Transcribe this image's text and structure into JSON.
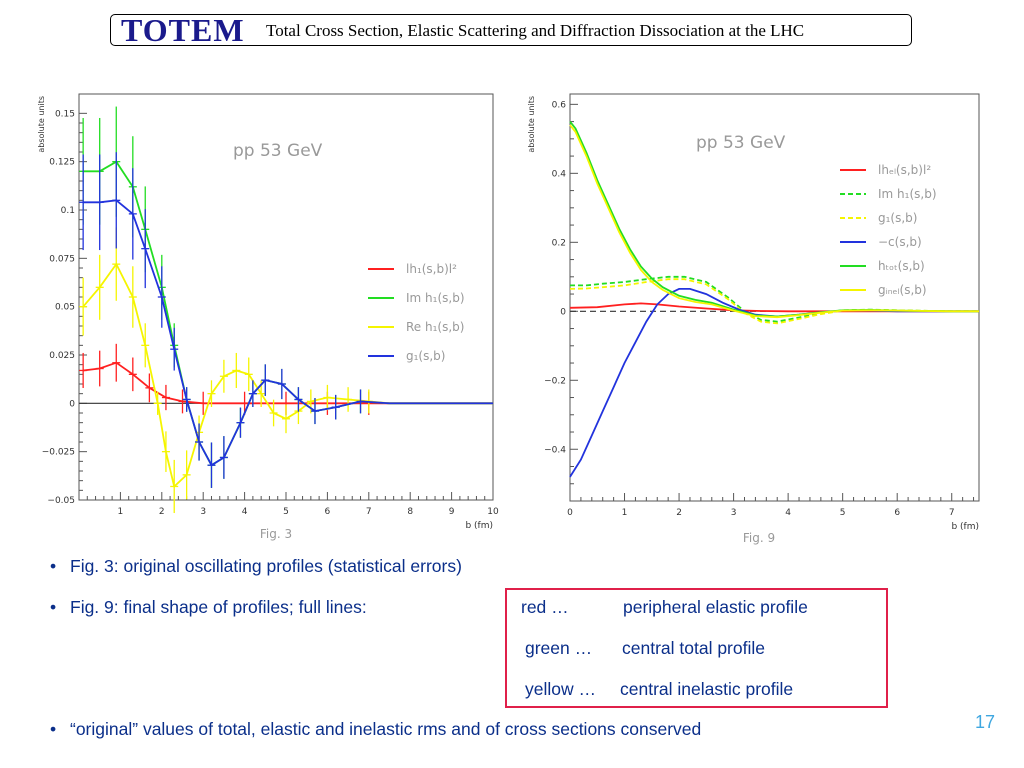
{
  "header": {
    "logo": "TOTEM",
    "title": "Total Cross Section, Elastic Scattering and Diffraction Dissociation at the LHC"
  },
  "colors": {
    "red": "#ff2020",
    "green": "#22dd22",
    "yellow": "#f5f500",
    "blue": "#2233dd",
    "text": "#0b2f8a",
    "box": "#e0204a",
    "pagenum": "#3fa7e0"
  },
  "chart_data": [
    {
      "type": "line",
      "annotation": "pp 53 GeV",
      "figure_label": "Fig. 3",
      "xlabel": "b (fm)",
      "ylabel": "absolute units",
      "xlim": [
        0,
        10
      ],
      "ylim": [
        -0.05,
        0.16
      ],
      "xticks": [
        "1",
        "2",
        "3",
        "4",
        "5",
        "6",
        "7",
        "8",
        "9",
        "10"
      ],
      "yticks": [
        "0.15",
        "0.125",
        "0.1",
        "0.075",
        "0.05",
        "0.025",
        "0",
        "−0.025",
        "−0.05"
      ],
      "legend_position": "right",
      "series": [
        {
          "name": "lh₁(s,b)l²",
          "color": "red",
          "error_bars": true,
          "x": [
            0.1,
            0.5,
            0.9,
            1.3,
            1.7,
            2.1,
            2.5,
            3.0,
            4.0,
            5.0,
            6.0,
            7.0,
            8.0,
            9.0,
            10.0
          ],
          "y": [
            0.017,
            0.018,
            0.021,
            0.015,
            0.008,
            0.003,
            0.001,
            0.0,
            0.0,
            0.0,
            0.0,
            0.0,
            0.0,
            0.0,
            0.0
          ]
        },
        {
          "name": "Im h₁(s,b)",
          "color": "green",
          "error_bars": true,
          "x": [
            0.1,
            0.5,
            0.9,
            1.3,
            1.6,
            2.0,
            2.3,
            2.6,
            2.9,
            3.2,
            3.5,
            3.9,
            4.2,
            4.5,
            4.9,
            5.3,
            5.7,
            6.2,
            6.8,
            7.5,
            8.5,
            10.0
          ],
          "y": [
            0.12,
            0.12,
            0.125,
            0.112,
            0.09,
            0.06,
            0.03,
            0.002,
            -0.02,
            -0.032,
            -0.028,
            -0.01,
            0.005,
            0.012,
            0.01,
            0.002,
            -0.004,
            -0.002,
            0.001,
            0.0,
            0.0,
            0.0
          ]
        },
        {
          "name": "Re h₁(s,b)",
          "color": "yellow",
          "error_bars": true,
          "x": [
            0.1,
            0.5,
            0.9,
            1.3,
            1.6,
            1.9,
            2.1,
            2.3,
            2.6,
            2.9,
            3.2,
            3.5,
            3.8,
            4.1,
            4.4,
            4.7,
            5.0,
            5.3,
            5.6,
            6.0,
            6.5,
            7.0,
            7.5,
            8.0,
            9.0,
            10.0
          ],
          "y": [
            0.05,
            0.06,
            0.072,
            0.055,
            0.03,
            0.0,
            -0.025,
            -0.043,
            -0.037,
            -0.015,
            0.005,
            0.014,
            0.017,
            0.015,
            0.005,
            -0.005,
            -0.008,
            -0.004,
            0.001,
            0.003,
            0.002,
            0.001,
            0.0,
            0.0,
            0.0,
            0.0
          ]
        },
        {
          "name": "g₁(s,b)",
          "color": "blue",
          "error_bars": true,
          "x": [
            0.1,
            0.5,
            0.9,
            1.3,
            1.6,
            2.0,
            2.3,
            2.6,
            2.9,
            3.2,
            3.5,
            3.9,
            4.2,
            4.5,
            4.9,
            5.3,
            5.7,
            6.2,
            6.8,
            7.5,
            8.5,
            10.0
          ],
          "y": [
            0.104,
            0.104,
            0.105,
            0.098,
            0.08,
            0.055,
            0.028,
            0.002,
            -0.02,
            -0.032,
            -0.028,
            -0.01,
            0.005,
            0.012,
            0.01,
            0.002,
            -0.004,
            -0.002,
            0.001,
            0.0,
            0.0,
            0.0
          ]
        }
      ]
    },
    {
      "type": "line",
      "annotation": "pp 53 GeV",
      "figure_label": "Fig. 9",
      "xlabel": "b (fm)",
      "ylabel": "absolute units",
      "xlim": [
        0,
        7.5
      ],
      "ylim": [
        -0.55,
        0.63
      ],
      "xticks": [
        "0",
        "1",
        "2",
        "3",
        "4",
        "5",
        "6",
        "7"
      ],
      "yticks": [
        "0.6",
        "0.4",
        "0.2",
        "0",
        "−0.2",
        "−0.4"
      ],
      "legend_position": "right",
      "series": [
        {
          "name": "lhₑₗ(s,b)l²",
          "color": "red",
          "dash": false,
          "x": [
            0,
            0.5,
            1.0,
            1.3,
            1.6,
            2.0,
            2.5,
            3.0,
            3.5,
            4.0,
            5.0,
            6.0,
            7.5
          ],
          "y": [
            0.01,
            0.012,
            0.02,
            0.023,
            0.02,
            0.014,
            0.008,
            0.003,
            0.001,
            0.0,
            0.0,
            0.0,
            0.0
          ]
        },
        {
          "name": "Im h₁(s,b)",
          "color": "green",
          "dash": true,
          "x": [
            0,
            0.3,
            0.6,
            1.0,
            1.4,
            1.8,
            2.1,
            2.5,
            2.9,
            3.2,
            3.5,
            3.8,
            4.2,
            4.6,
            5.0,
            5.5,
            6.0,
            7.0,
            7.5
          ],
          "y": [
            0.075,
            0.075,
            0.08,
            0.085,
            0.093,
            0.1,
            0.1,
            0.085,
            0.04,
            0.0,
            -0.025,
            -0.03,
            -0.018,
            -0.005,
            0.003,
            0.005,
            0.003,
            0.0,
            0.0
          ]
        },
        {
          "name": "g₁(s,b)",
          "color": "yellow",
          "dash": true,
          "x": [
            0,
            0.3,
            0.6,
            1.0,
            1.4,
            1.8,
            2.1,
            2.5,
            2.9,
            3.2,
            3.5,
            3.8,
            4.2,
            4.6,
            5.0,
            5.5,
            6.0,
            7.0,
            7.5
          ],
          "y": [
            0.065,
            0.066,
            0.07,
            0.075,
            0.085,
            0.093,
            0.093,
            0.078,
            0.035,
            -0.005,
            -0.03,
            -0.035,
            -0.022,
            -0.008,
            0.002,
            0.004,
            0.003,
            0.0,
            0.0
          ]
        },
        {
          "name": "−c(s,b)",
          "color": "blue",
          "dash": false,
          "x": [
            0,
            0.2,
            0.4,
            0.6,
            0.8,
            1.0,
            1.2,
            1.4,
            1.6,
            1.8,
            2.0,
            2.2,
            2.5,
            2.8,
            3.1,
            3.4,
            3.8,
            4.2,
            4.6,
            5.0,
            5.5,
            6.0,
            7.0,
            7.5
          ],
          "y": [
            -0.48,
            -0.43,
            -0.36,
            -0.29,
            -0.22,
            -0.15,
            -0.09,
            -0.03,
            0.02,
            0.05,
            0.065,
            0.065,
            0.05,
            0.025,
            0.005,
            -0.01,
            -0.015,
            -0.01,
            -0.003,
            0.002,
            0.002,
            0.0,
            0.0,
            0.0
          ]
        },
        {
          "name": "hₜₒₜ(s,b)",
          "color": "green",
          "dash": false,
          "x": [
            0,
            0.1,
            0.3,
            0.5,
            0.7,
            0.9,
            1.1,
            1.3,
            1.5,
            1.7,
            2.0,
            2.3,
            2.6,
            3.0,
            3.4,
            3.8,
            4.2,
            4.6,
            5.0,
            5.5,
            6.0,
            7.0,
            7.5
          ],
          "y": [
            0.55,
            0.53,
            0.46,
            0.38,
            0.31,
            0.24,
            0.18,
            0.13,
            0.095,
            0.07,
            0.045,
            0.033,
            0.025,
            0.005,
            -0.012,
            -0.015,
            -0.01,
            -0.003,
            0.003,
            0.004,
            0.002,
            0.0,
            0.0
          ]
        },
        {
          "name": "gᵢₙₑₗ(s,b)",
          "color": "yellow",
          "dash": false,
          "x": [
            0,
            0.1,
            0.3,
            0.5,
            0.7,
            0.9,
            1.1,
            1.3,
            1.5,
            1.7,
            2.0,
            2.3,
            2.6,
            3.0,
            3.4,
            3.8,
            4.2,
            4.6,
            5.0,
            5.5,
            6.0,
            7.0,
            7.5
          ],
          "y": [
            0.54,
            0.52,
            0.45,
            0.37,
            0.3,
            0.23,
            0.17,
            0.12,
            0.085,
            0.062,
            0.038,
            0.027,
            0.02,
            0.002,
            -0.014,
            -0.017,
            -0.011,
            -0.004,
            0.002,
            0.003,
            0.002,
            0.0,
            0.0
          ]
        }
      ]
    }
  ],
  "bullets": [
    {
      "dot": "•",
      "text": "Fig. 3: original oscillating profiles (statistical errors)"
    },
    {
      "dot": "•",
      "text": "Fig. 9: final shape of profiles; full lines:"
    },
    {
      "dot": "•",
      "text": "“original” values of total, elastic and inelastic rms and of cross sections conserved"
    }
  ],
  "box": [
    {
      "color_label": "red …",
      "desc": "peripheral elastic profile"
    },
    {
      "color_label": "green …",
      "desc": "central total profile"
    },
    {
      "color_label": "yellow …",
      "desc": "central inelastic profile"
    }
  ],
  "page_number": "17"
}
